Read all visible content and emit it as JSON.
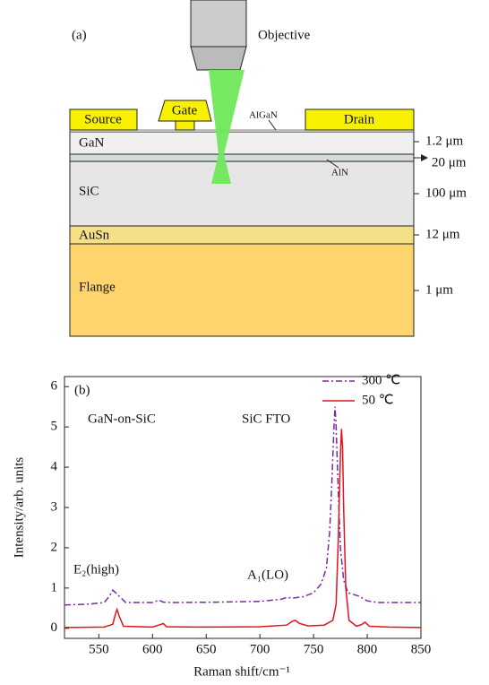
{
  "diagram": {
    "label": "(a)",
    "objective": "Objective",
    "contacts": [
      "Source",
      "Gate",
      "Drain"
    ],
    "layers": [
      "AlGaN",
      "GaN",
      "AlN",
      "SiC",
      "AuSn",
      "Flange"
    ],
    "thicknesses": [
      "1.2 μm",
      "20 μm",
      "100 μm",
      "12 μm",
      "1 μm"
    ]
  },
  "chart_data": {
    "type": "line",
    "panel_label": "(b)",
    "x_label": "Raman shift/cm⁻¹",
    "y_label": "Intensity/arb. units",
    "annotations": [
      "GaN-on-SiC",
      "SiC FTO",
      "E₂(high)",
      "A₁(LO)"
    ],
    "xlim": [
      518,
      850
    ],
    "ylim": [
      -0.25,
      6.25
    ],
    "xticks": [
      550,
      600,
      650,
      700,
      750,
      800,
      850
    ],
    "yticks": [
      0,
      1,
      2,
      3,
      4,
      5,
      6
    ],
    "legend": "upper right",
    "series": [
      {
        "name": "300 ℃",
        "color": "#7a2c9e",
        "dash": "dashdot",
        "x": [
          518,
          540,
          555,
          560,
          563,
          567,
          575,
          600,
          606,
          610,
          620,
          660,
          700,
          720,
          725,
          730,
          740,
          750,
          757,
          762,
          765,
          767,
          769,
          770,
          771,
          773,
          775,
          778,
          782,
          786,
          792,
          800,
          810,
          850
        ],
        "values": [
          0.58,
          0.6,
          0.64,
          0.8,
          0.95,
          0.85,
          0.64,
          0.64,
          0.7,
          0.65,
          0.64,
          0.65,
          0.67,
          0.72,
          0.77,
          0.75,
          0.78,
          0.88,
          1.1,
          1.5,
          2.4,
          3.6,
          5.0,
          5.5,
          5.0,
          3.4,
          2.0,
          1.2,
          0.88,
          0.85,
          0.8,
          0.68,
          0.64,
          0.64
        ]
      },
      {
        "name": "50 ℃",
        "color": "#e0141e",
        "dash": "solid",
        "x": [
          518,
          555,
          563,
          566,
          567,
          569,
          573,
          600,
          608,
          610,
          613,
          640,
          700,
          725,
          730,
          733,
          737,
          745,
          760,
          768,
          771,
          773,
          775,
          776,
          777,
          778,
          780,
          783,
          790,
          795,
          798,
          802,
          820,
          850
        ],
        "values": [
          0.02,
          0.03,
          0.1,
          0.4,
          0.47,
          0.3,
          0.05,
          0.03,
          0.1,
          0.12,
          0.04,
          0.03,
          0.04,
          0.08,
          0.17,
          0.2,
          0.12,
          0.06,
          0.08,
          0.2,
          0.6,
          2.2,
          4.3,
          4.95,
          4.5,
          3.0,
          1.0,
          0.2,
          0.05,
          0.1,
          0.15,
          0.05,
          0.03,
          0.02
        ]
      }
    ]
  }
}
